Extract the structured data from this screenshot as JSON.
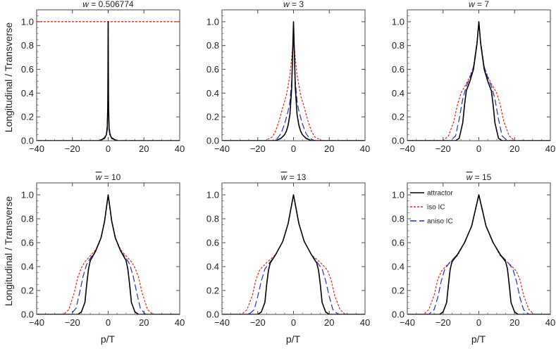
{
  "figure": {
    "ylabel": "Longitudinal / Transverse",
    "xlabel": "p/T"
  },
  "legend": {
    "items": [
      {
        "label": "attractor",
        "color": "#000000",
        "dash": "solid"
      },
      {
        "label": "iso IC",
        "color": "#d62b1f",
        "dash": "dotted"
      },
      {
        "label": "aniso IC",
        "color": "#1f2fb8",
        "dash": "dashed"
      }
    ]
  },
  "chart_data": [
    {
      "type": "line",
      "title": "w̅ = 0.506774",
      "title_var": "w",
      "title_value": "0.506774",
      "xlabel": "",
      "ylabel": "Longitudinal / Transverse",
      "xlim": [
        -40,
        40
      ],
      "ylim": [
        0,
        1.1
      ],
      "xticks": [
        -40,
        -20,
        0,
        20,
        40
      ],
      "yticks": [
        0.0,
        0.2,
        0.4,
        0.6,
        0.8,
        1.0
      ],
      "reference_line": {
        "y": 1.0,
        "color": "#d62b1f",
        "dash": "dotted"
      },
      "series": [
        {
          "name": "attractor",
          "x": [
            -40,
            -5,
            -2,
            -1,
            -0.5,
            -0.2,
            0,
            0.2,
            0.5,
            1,
            2,
            5,
            40
          ],
          "y": [
            0,
            0,
            0.02,
            0.05,
            0.1,
            0.3,
            1.0,
            0.3,
            0.1,
            0.05,
            0.02,
            0,
            0
          ]
        },
        {
          "name": "iso IC",
          "x": [
            -40,
            40
          ],
          "y": [
            1.0,
            1.0
          ]
        },
        {
          "name": "aniso IC",
          "x": [
            -40,
            -4,
            -2,
            -1,
            -0.5,
            -0.2,
            0,
            0.2,
            0.5,
            1,
            2,
            4,
            40
          ],
          "y": [
            0,
            0,
            0.03,
            0.06,
            0.14,
            0.35,
            1.0,
            0.35,
            0.14,
            0.06,
            0.03,
            0,
            0
          ]
        }
      ]
    },
    {
      "type": "line",
      "title": "w̅ = 3",
      "title_var": "w",
      "title_value": "3",
      "xlabel": "",
      "ylabel": "",
      "xlim": [
        -40,
        40
      ],
      "ylim": [
        0,
        1.1
      ],
      "xticks": [
        -40,
        -20,
        0,
        20,
        40
      ],
      "yticks": [
        0.0,
        0.2,
        0.4,
        0.6,
        0.8,
        1.0
      ],
      "series": [
        {
          "name": "attractor",
          "x": [
            -40,
            -10,
            -7,
            -5,
            -4,
            -3,
            -2,
            -1,
            0,
            1,
            2,
            3,
            4,
            5,
            7,
            10,
            40
          ],
          "y": [
            0,
            0,
            0.02,
            0.05,
            0.08,
            0.13,
            0.22,
            0.45,
            1.0,
            0.45,
            0.22,
            0.13,
            0.08,
            0.05,
            0.02,
            0,
            0
          ]
        },
        {
          "name": "iso IC",
          "x": [
            -40,
            -16,
            -12,
            -10,
            -8,
            -6,
            -4,
            -2,
            -1,
            0,
            1,
            2,
            4,
            6,
            8,
            10,
            12,
            16,
            40
          ],
          "y": [
            0,
            0,
            0.03,
            0.08,
            0.17,
            0.28,
            0.38,
            0.55,
            0.7,
            0.86,
            0.7,
            0.55,
            0.38,
            0.28,
            0.17,
            0.08,
            0.03,
            0,
            0
          ]
        },
        {
          "name": "aniso IC",
          "x": [
            -40,
            -12,
            -9,
            -7,
            -5,
            -3,
            -2,
            -1,
            0,
            1,
            2,
            3,
            5,
            7,
            9,
            12,
            40
          ],
          "y": [
            0,
            0,
            0.02,
            0.06,
            0.14,
            0.25,
            0.33,
            0.5,
            0.95,
            0.5,
            0.33,
            0.25,
            0.14,
            0.06,
            0.02,
            0,
            0
          ]
        }
      ]
    },
    {
      "type": "line",
      "title": "w̅ = 7",
      "title_var": "w",
      "title_value": "7",
      "xlabel": "",
      "ylabel": "",
      "xlim": [
        -40,
        40
      ],
      "ylim": [
        0,
        1.1
      ],
      "xticks": [
        -40,
        -20,
        0,
        20,
        40
      ],
      "yticks": [
        0.0,
        0.2,
        0.4,
        0.6,
        0.8,
        1.0
      ],
      "series": [
        {
          "name": "attractor",
          "x": [
            -40,
            -13,
            -11,
            -9,
            -8,
            -7,
            -5,
            -3,
            -1,
            0,
            1,
            3,
            5,
            7,
            8,
            9,
            11,
            13,
            40
          ],
          "y": [
            0,
            0,
            0.02,
            0.15,
            0.3,
            0.42,
            0.5,
            0.6,
            0.82,
            1.0,
            0.82,
            0.6,
            0.5,
            0.42,
            0.3,
            0.15,
            0.02,
            0,
            0
          ]
        },
        {
          "name": "iso IC",
          "x": [
            -40,
            -20,
            -17,
            -14,
            -12,
            -10,
            -7,
            -5,
            -3,
            -1,
            0,
            1,
            3,
            5,
            7,
            10,
            12,
            14,
            17,
            20,
            40
          ],
          "y": [
            0,
            0,
            0.04,
            0.16,
            0.3,
            0.4,
            0.48,
            0.54,
            0.62,
            0.83,
            1.0,
            0.83,
            0.62,
            0.54,
            0.48,
            0.4,
            0.3,
            0.16,
            0.04,
            0,
            0
          ]
        },
        {
          "name": "aniso IC",
          "x": [
            -40,
            -16,
            -13,
            -11,
            -9,
            -7,
            -5,
            -3,
            -1,
            0,
            1,
            3,
            5,
            7,
            9,
            11,
            13,
            16,
            40
          ],
          "y": [
            0,
            0,
            0.04,
            0.18,
            0.35,
            0.46,
            0.53,
            0.62,
            0.83,
            1.0,
            0.83,
            0.62,
            0.53,
            0.46,
            0.35,
            0.18,
            0.04,
            0,
            0
          ]
        }
      ]
    },
    {
      "type": "line",
      "title": "w̅ = 10",
      "title_var": "w",
      "title_value": "10",
      "xlabel": "p/T",
      "ylabel": "Longitudinal / Transverse",
      "xlim": [
        -40,
        40
      ],
      "ylim": [
        0,
        1.1
      ],
      "xticks": [
        -40,
        -20,
        0,
        20,
        40
      ],
      "yticks": [
        0.0,
        0.2,
        0.4,
        0.6,
        0.8,
        1.0
      ],
      "series": [
        {
          "name": "attractor",
          "x": [
            -40,
            -17,
            -15,
            -13,
            -12,
            -11,
            -10,
            -7,
            -4,
            -2,
            0,
            2,
            4,
            7,
            10,
            11,
            12,
            13,
            15,
            17,
            40
          ],
          "y": [
            0,
            0,
            0.02,
            0.1,
            0.25,
            0.38,
            0.45,
            0.53,
            0.64,
            0.78,
            1.0,
            0.78,
            0.64,
            0.53,
            0.45,
            0.38,
            0.25,
            0.1,
            0.02,
            0,
            0
          ]
        },
        {
          "name": "iso IC",
          "x": [
            -40,
            -25,
            -22,
            -19,
            -17,
            -15,
            -13,
            -10,
            -7,
            -4,
            -2,
            0,
            2,
            4,
            7,
            10,
            13,
            15,
            17,
            19,
            22,
            25,
            40
          ],
          "y": [
            0,
            0,
            0.04,
            0.18,
            0.31,
            0.39,
            0.44,
            0.49,
            0.54,
            0.64,
            0.78,
            1.0,
            0.78,
            0.64,
            0.54,
            0.49,
            0.44,
            0.39,
            0.31,
            0.18,
            0.04,
            0,
            0
          ]
        },
        {
          "name": "aniso IC",
          "x": [
            -40,
            -21,
            -18,
            -16,
            -14,
            -12,
            -10,
            -7,
            -4,
            -2,
            0,
            2,
            4,
            7,
            10,
            12,
            14,
            16,
            18,
            21,
            40
          ],
          "y": [
            0,
            0,
            0.05,
            0.18,
            0.32,
            0.42,
            0.47,
            0.53,
            0.64,
            0.78,
            1.0,
            0.78,
            0.64,
            0.53,
            0.47,
            0.42,
            0.32,
            0.18,
            0.05,
            0,
            0
          ]
        }
      ]
    },
    {
      "type": "line",
      "title": "w̅ = 13",
      "title_var": "w",
      "title_value": "13",
      "xlabel": "p/T",
      "ylabel": "",
      "xlim": [
        -40,
        40
      ],
      "ylim": [
        0,
        1.1
      ],
      "xticks": [
        -40,
        -20,
        0,
        20,
        40
      ],
      "yticks": [
        0.0,
        0.2,
        0.4,
        0.6,
        0.8,
        1.0
      ],
      "series": [
        {
          "name": "attractor",
          "x": [
            -40,
            -20,
            -18,
            -16,
            -15,
            -14,
            -13,
            -10,
            -6,
            -3,
            0,
            3,
            6,
            10,
            13,
            14,
            15,
            16,
            18,
            20,
            40
          ],
          "y": [
            0,
            0,
            0.02,
            0.1,
            0.25,
            0.37,
            0.43,
            0.5,
            0.61,
            0.76,
            1.0,
            0.76,
            0.61,
            0.5,
            0.43,
            0.37,
            0.25,
            0.1,
            0.02,
            0,
            0
          ]
        },
        {
          "name": "iso IC",
          "x": [
            -40,
            -29,
            -26,
            -23,
            -21,
            -19,
            -16,
            -13,
            -10,
            -6,
            -3,
            0,
            3,
            6,
            10,
            13,
            16,
            19,
            21,
            23,
            26,
            29,
            40
          ],
          "y": [
            0,
            0,
            0.04,
            0.16,
            0.29,
            0.37,
            0.42,
            0.46,
            0.5,
            0.61,
            0.76,
            1.0,
            0.76,
            0.61,
            0.5,
            0.46,
            0.42,
            0.37,
            0.29,
            0.16,
            0.04,
            0,
            0
          ]
        },
        {
          "name": "aniso IC",
          "x": [
            -40,
            -25,
            -22,
            -20,
            -18,
            -16,
            -13,
            -10,
            -6,
            -3,
            0,
            3,
            6,
            10,
            13,
            16,
            18,
            20,
            22,
            25,
            40
          ],
          "y": [
            0,
            0,
            0.04,
            0.15,
            0.28,
            0.38,
            0.44,
            0.5,
            0.61,
            0.76,
            1.0,
            0.76,
            0.61,
            0.5,
            0.44,
            0.38,
            0.28,
            0.15,
            0.04,
            0,
            0
          ]
        }
      ]
    },
    {
      "type": "line",
      "title": "w̅ = 15",
      "title_var": "w",
      "title_value": "15",
      "xlabel": "p/T",
      "ylabel": "",
      "xlim": [
        -40,
        40
      ],
      "ylim": [
        0,
        1.1
      ],
      "xticks": [
        -40,
        -20,
        0,
        20,
        40
      ],
      "yticks": [
        0.0,
        0.2,
        0.4,
        0.6,
        0.8,
        1.0
      ],
      "legend_position": "top-left",
      "series": [
        {
          "name": "attractor",
          "x": [
            -40,
            -22,
            -20,
            -18,
            -17,
            -16,
            -15,
            -12,
            -8,
            -4,
            0,
            4,
            8,
            12,
            15,
            16,
            17,
            18,
            20,
            22,
            40
          ],
          "y": [
            0,
            0,
            0.02,
            0.1,
            0.25,
            0.38,
            0.44,
            0.5,
            0.6,
            0.74,
            1.0,
            0.74,
            0.6,
            0.5,
            0.44,
            0.38,
            0.25,
            0.1,
            0.02,
            0,
            0
          ]
        },
        {
          "name": "iso IC",
          "x": [
            -40,
            -31,
            -28,
            -25,
            -23,
            -21,
            -18,
            -15,
            -12,
            -8,
            -4,
            0,
            4,
            8,
            12,
            15,
            18,
            21,
            23,
            25,
            28,
            31,
            40
          ],
          "y": [
            0,
            0,
            0.04,
            0.16,
            0.29,
            0.36,
            0.41,
            0.45,
            0.49,
            0.6,
            0.74,
            1.0,
            0.74,
            0.6,
            0.49,
            0.45,
            0.41,
            0.36,
            0.29,
            0.16,
            0.04,
            0,
            0
          ]
        },
        {
          "name": "aniso IC",
          "x": [
            -40,
            -28,
            -25,
            -23,
            -21,
            -19,
            -16,
            -12,
            -8,
            -4,
            0,
            4,
            8,
            12,
            16,
            19,
            21,
            23,
            25,
            28,
            40
          ],
          "y": [
            0,
            0,
            0.04,
            0.14,
            0.28,
            0.38,
            0.44,
            0.5,
            0.6,
            0.74,
            1.0,
            0.74,
            0.6,
            0.5,
            0.44,
            0.38,
            0.28,
            0.14,
            0.04,
            0,
            0
          ]
        }
      ]
    }
  ]
}
